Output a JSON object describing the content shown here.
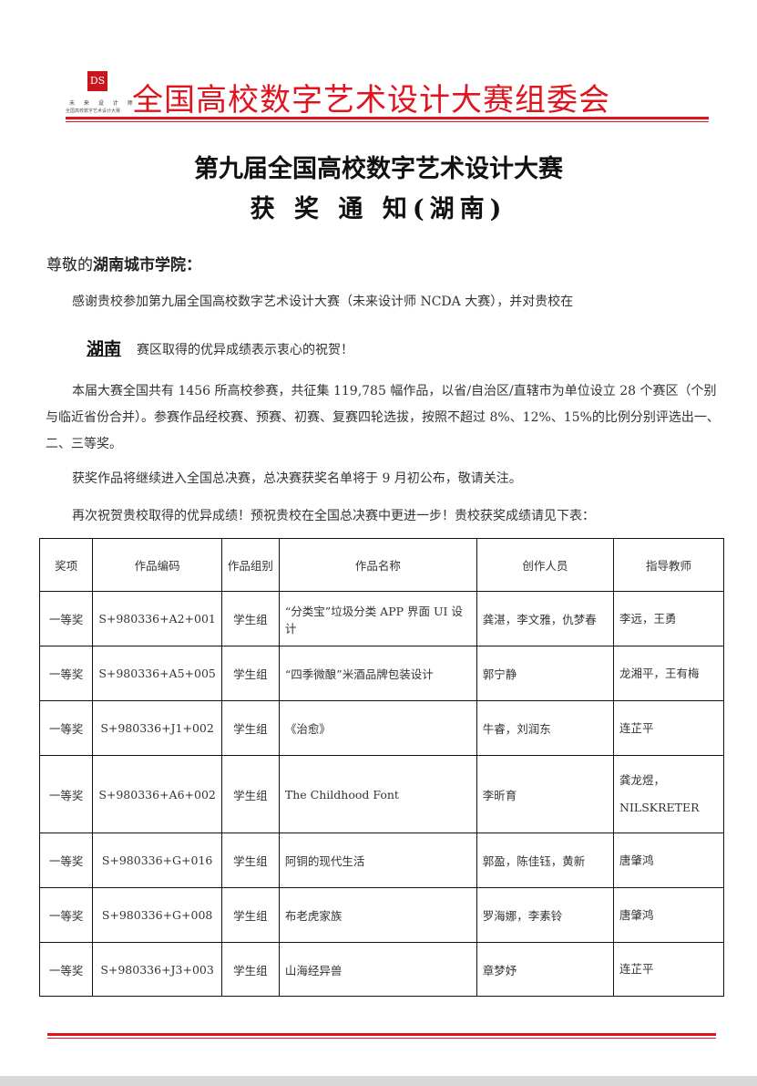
{
  "header": {
    "logo_mark": "DS",
    "logo_line1": "未 来 设 计 师",
    "logo_line2": "全国高校数字艺术设计大赛",
    "org_name": "全国高校数字艺术设计大赛组委会",
    "accent_color": "#e0141e"
  },
  "title": {
    "line1": "第九届全国高校数字艺术设计大赛",
    "line2": "获 奖 通 知(湖南)"
  },
  "greeting": {
    "prefix": "尊敬的",
    "school": "湖南城市学院",
    "suffix": "："
  },
  "body": {
    "p1": "感谢贵校参加第九届全国高校数字艺术设计大赛（未来设计师 NCDA 大赛），并对贵校在",
    "region": "湖南",
    "p2": "赛区取得的优异成绩表示衷心的祝贺！",
    "p3": "本届大赛全国共有 1456 所高校参赛，共征集 119,785 幅作品，以省/自治区/直辖市为单位设立 28 个赛区（个别与临近省份合并）。参赛作品经校赛、预赛、初赛、复赛四轮选拔，按照不超过 8%、12%、15%的比例分别评选出一、二、三等奖。",
    "p4": "获奖作品将继续进入全国总决赛，总决赛获奖名单将于 9 月初公布，敬请关注。",
    "p5": "再次祝贺贵校取得的优异成绩！预祝贵校在全国总决赛中更进一步！贵校获奖成绩请见下表："
  },
  "table": {
    "headers": [
      "奖项",
      "作品编码",
      "作品组别",
      "作品名称",
      "创作人员",
      "指导教师"
    ],
    "rows": [
      [
        "一等奖",
        "S+980336+A2+001",
        "学生组",
        "“分类宝”垃圾分类 APP 界面 UI 设计",
        "龚湛，李文雅，仇梦春",
        "李远，王勇"
      ],
      [
        "一等奖",
        "S+980336+A5+005",
        "学生组",
        "“四季微酿”米酒品牌包装设计",
        "郭宁静",
        "龙湘平，王有梅"
      ],
      [
        "一等奖",
        "S+980336+J1+002",
        "学生组",
        "《治愈》",
        "牛睿，刘润东",
        "连芷平"
      ],
      [
        "一等奖",
        "S+980336+A6+002",
        "学生组",
        "The Childhood Font",
        "李昕育",
        "龚龙煜，NILSKRETER"
      ],
      [
        "一等奖",
        "S+980336+G+016",
        "学生组",
        "阿铜的现代生活",
        "郭盈，陈佳钰，黄新",
        "唐肇鸿"
      ],
      [
        "一等奖",
        "S+980336+G+008",
        "学生组",
        "布老虎家族",
        "罗海娜，李素铃",
        "唐肇鸿"
      ],
      [
        "一等奖",
        "S+980336+J3+003",
        "学生组",
        "山海经异兽",
        "章梦妤",
        "连芷平"
      ]
    ]
  }
}
